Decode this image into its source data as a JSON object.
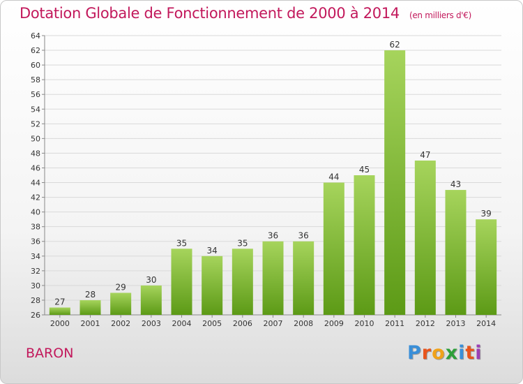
{
  "title": "Dotation Globale de Fonctionnement de 2000 à 2014",
  "subtitle": "(en milliers d'€)",
  "commune": "BARON",
  "logo_text": "Proxiti",
  "colors": {
    "title": "#c2185b",
    "bar_light": "#a6d45c",
    "bar_dark": "#5c9a16",
    "grid": "#d9d9d9"
  },
  "chart_data": {
    "type": "bar",
    "title": "Dotation Globale de Fonctionnement de 2000 à 2014",
    "subtitle": "(en milliers d'€)",
    "categories": [
      "2000",
      "2001",
      "2002",
      "2003",
      "2004",
      "2005",
      "2006",
      "2007",
      "2008",
      "2009",
      "2010",
      "2011",
      "2012",
      "2013",
      "2014"
    ],
    "values": [
      27,
      28,
      29,
      30,
      35,
      34,
      35,
      36,
      36,
      44,
      45,
      62,
      47,
      43,
      39
    ],
    "ylim": [
      26,
      64
    ],
    "yticks": [
      26,
      28,
      30,
      32,
      34,
      36,
      38,
      40,
      42,
      44,
      46,
      48,
      50,
      52,
      54,
      56,
      58,
      60,
      62,
      64
    ],
    "grid": true,
    "data_labels": true
  }
}
